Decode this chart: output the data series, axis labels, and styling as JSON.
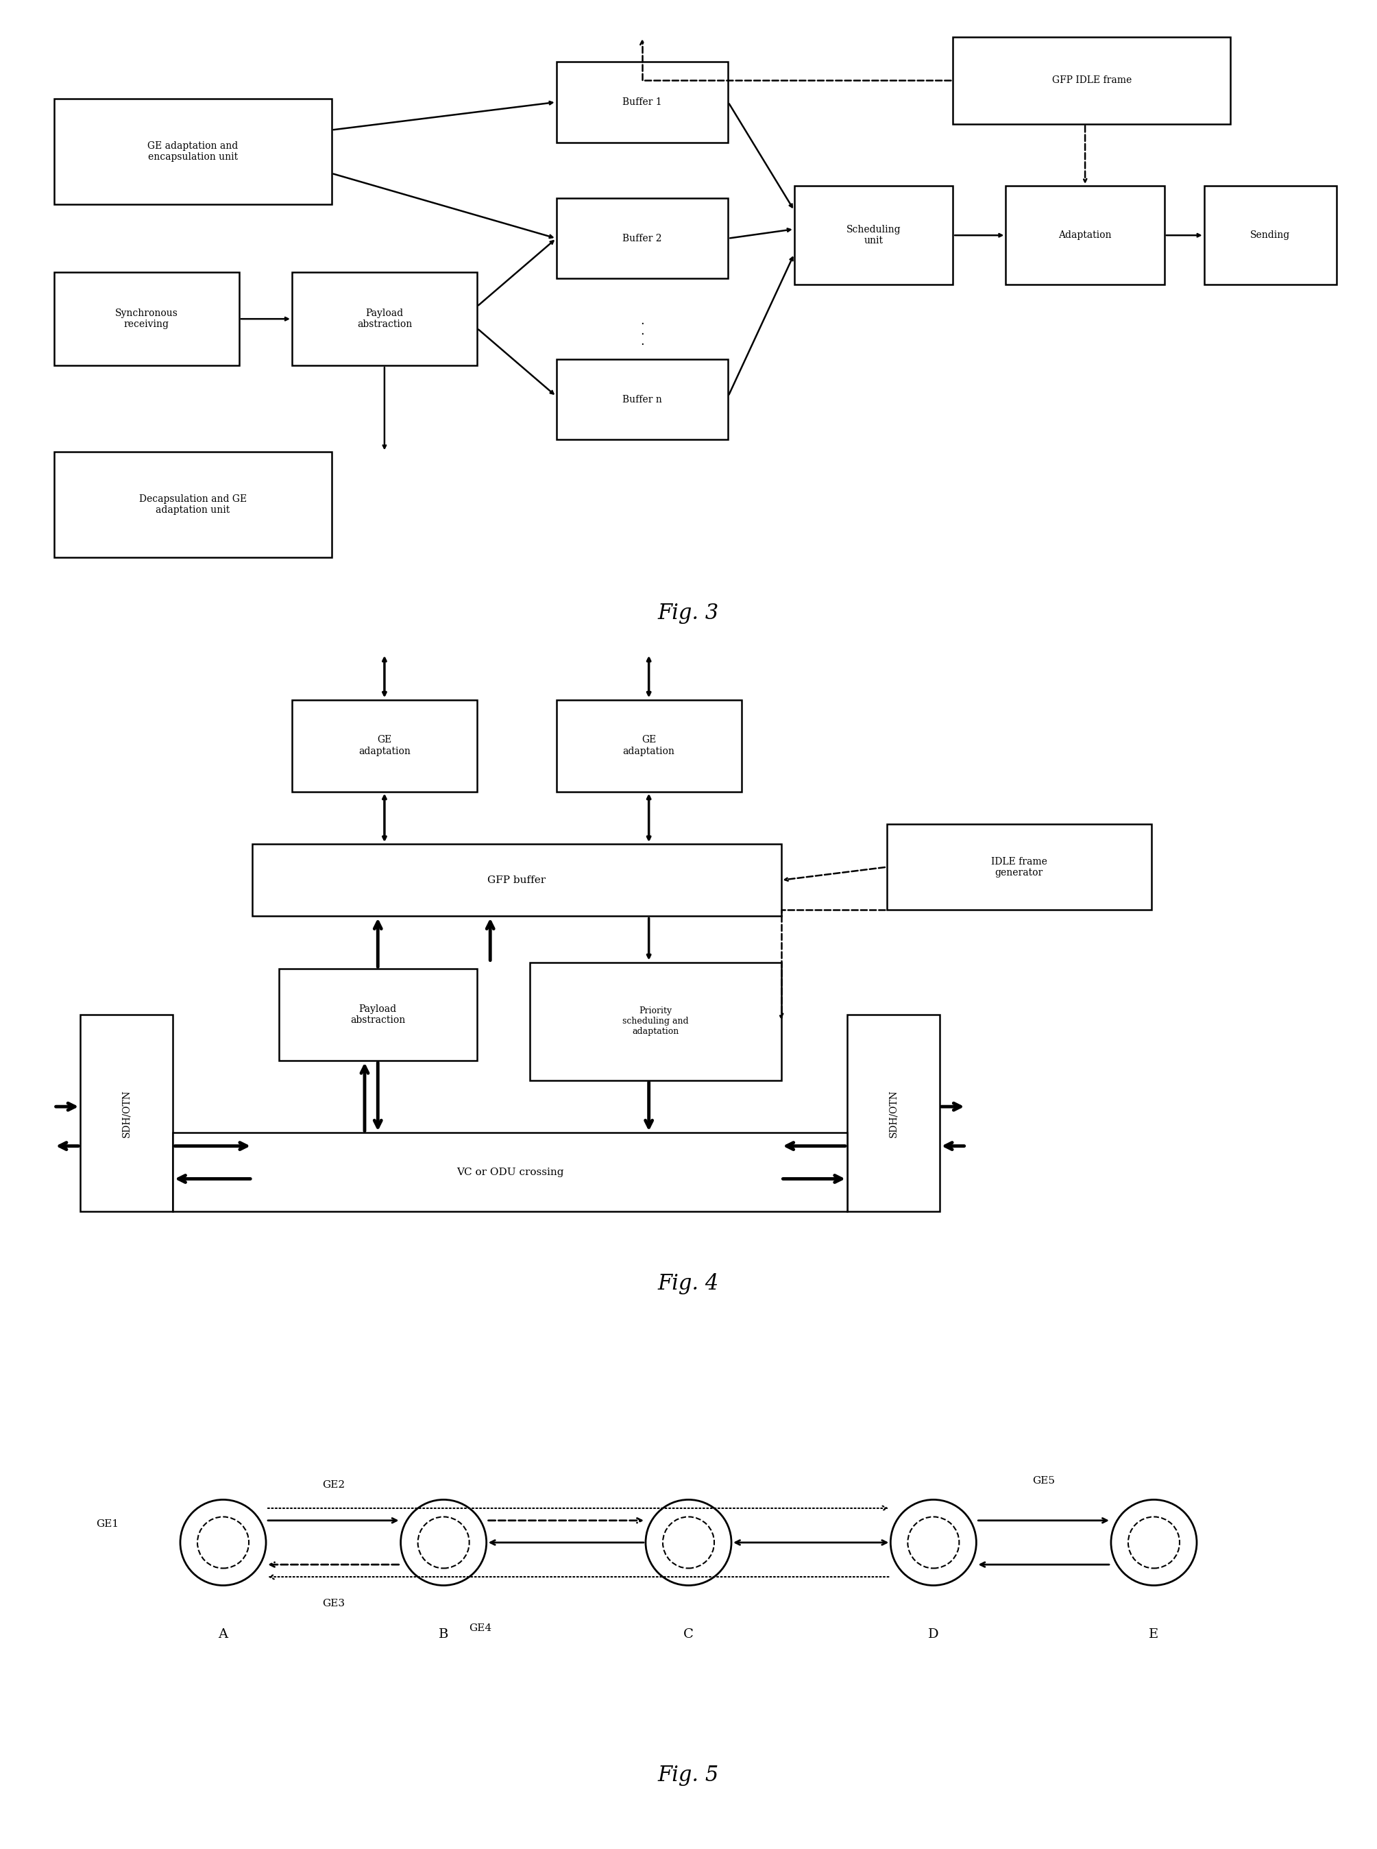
{
  "bg_color": "#ffffff",
  "fig3_title": "Fig. 3",
  "fig4_title": "Fig. 4",
  "fig5_title": "Fig. 5"
}
